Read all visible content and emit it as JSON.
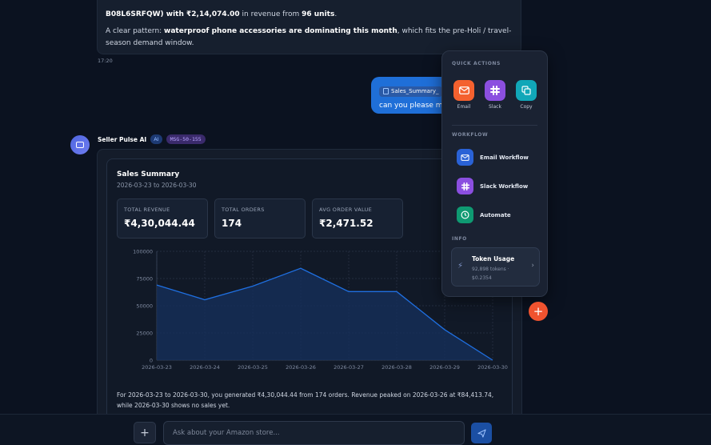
{
  "previous_message": {
    "line1_prefix": "B08L6SRFQW) with ",
    "line1_amount": "₹2,14,074.00",
    "line1_mid": " in revenue from ",
    "line1_units": "96 units",
    "line1_end": ".",
    "line2_prefix": "A clear pattern: ",
    "line2_bold": "waterproof phone accessories are dominating this month",
    "line2_rest": ", which fits the pre-Holi / travel-season demand window.",
    "time": "17:20"
  },
  "user_message": {
    "attachment": "Sales_Summary_",
    "text": "can you please ma"
  },
  "bot": {
    "name": "Seller Pulse AI",
    "badge_ai": "AI",
    "badge_msg": "MSG-50-155"
  },
  "sales_summary": {
    "title": "Sales Summary",
    "date_range": "2026-03-23 to 2026-03-30",
    "kpis": [
      {
        "label": "TOTAL REVENUE",
        "value": "₹4,30,044.44"
      },
      {
        "label": "TOTAL ORDERS",
        "value": "174"
      },
      {
        "label": "AVG ORDER VALUE",
        "value": "₹2,471.52"
      }
    ],
    "summary": "For 2026-03-23 to 2026-03-30, you generated ₹4,30,044.44 from 174 orders. Revenue peaked on 2026-03-26 at ₹84,413.74, while 2026-03-30 shows no sales yet."
  },
  "chart_data": {
    "type": "area",
    "x": [
      "2026-03-23",
      "2026-03-24",
      "2026-03-25",
      "2026-03-26",
      "2026-03-27",
      "2026-03-28",
      "2026-03-29",
      "2026-03-30"
    ],
    "values": [
      69000,
      55500,
      68000,
      84413.74,
      63000,
      63000,
      28000,
      0
    ],
    "yticks": [
      "0",
      "25000",
      "50000",
      "75000",
      "100000"
    ],
    "ylim": [
      0,
      100000
    ],
    "grid": true,
    "line_color": "#1f6fe0",
    "fill_color": "#16305d"
  },
  "quick_actions": {
    "section_quick": "QUICK ACTIONS",
    "buttons": [
      {
        "label": "Email",
        "icon": "mail-icon",
        "color": "#f4612f"
      },
      {
        "label": "Slack",
        "icon": "slack-icon",
        "color": "#8b4fe0"
      },
      {
        "label": "Copy",
        "icon": "copy-icon",
        "color": "#11a7b8"
      }
    ],
    "section_workflow": "WORKFLOW",
    "workflows": [
      {
        "label": "Email Workflow",
        "icon": "mail-icon",
        "color": "#2a62d6"
      },
      {
        "label": "Slack Workflow",
        "icon": "slack-icon",
        "color": "#8b4fe0"
      },
      {
        "label": "Automate",
        "icon": "clock-icon",
        "color": "#0f9a72"
      }
    ],
    "section_info": "INFO",
    "token": {
      "title": "Token Usage",
      "tokens": "92,898 tokens ·",
      "cost": "$0.2354"
    }
  },
  "composer": {
    "placeholder": "Ask about your Amazon store...",
    "plus": "+"
  },
  "fab": "+"
}
